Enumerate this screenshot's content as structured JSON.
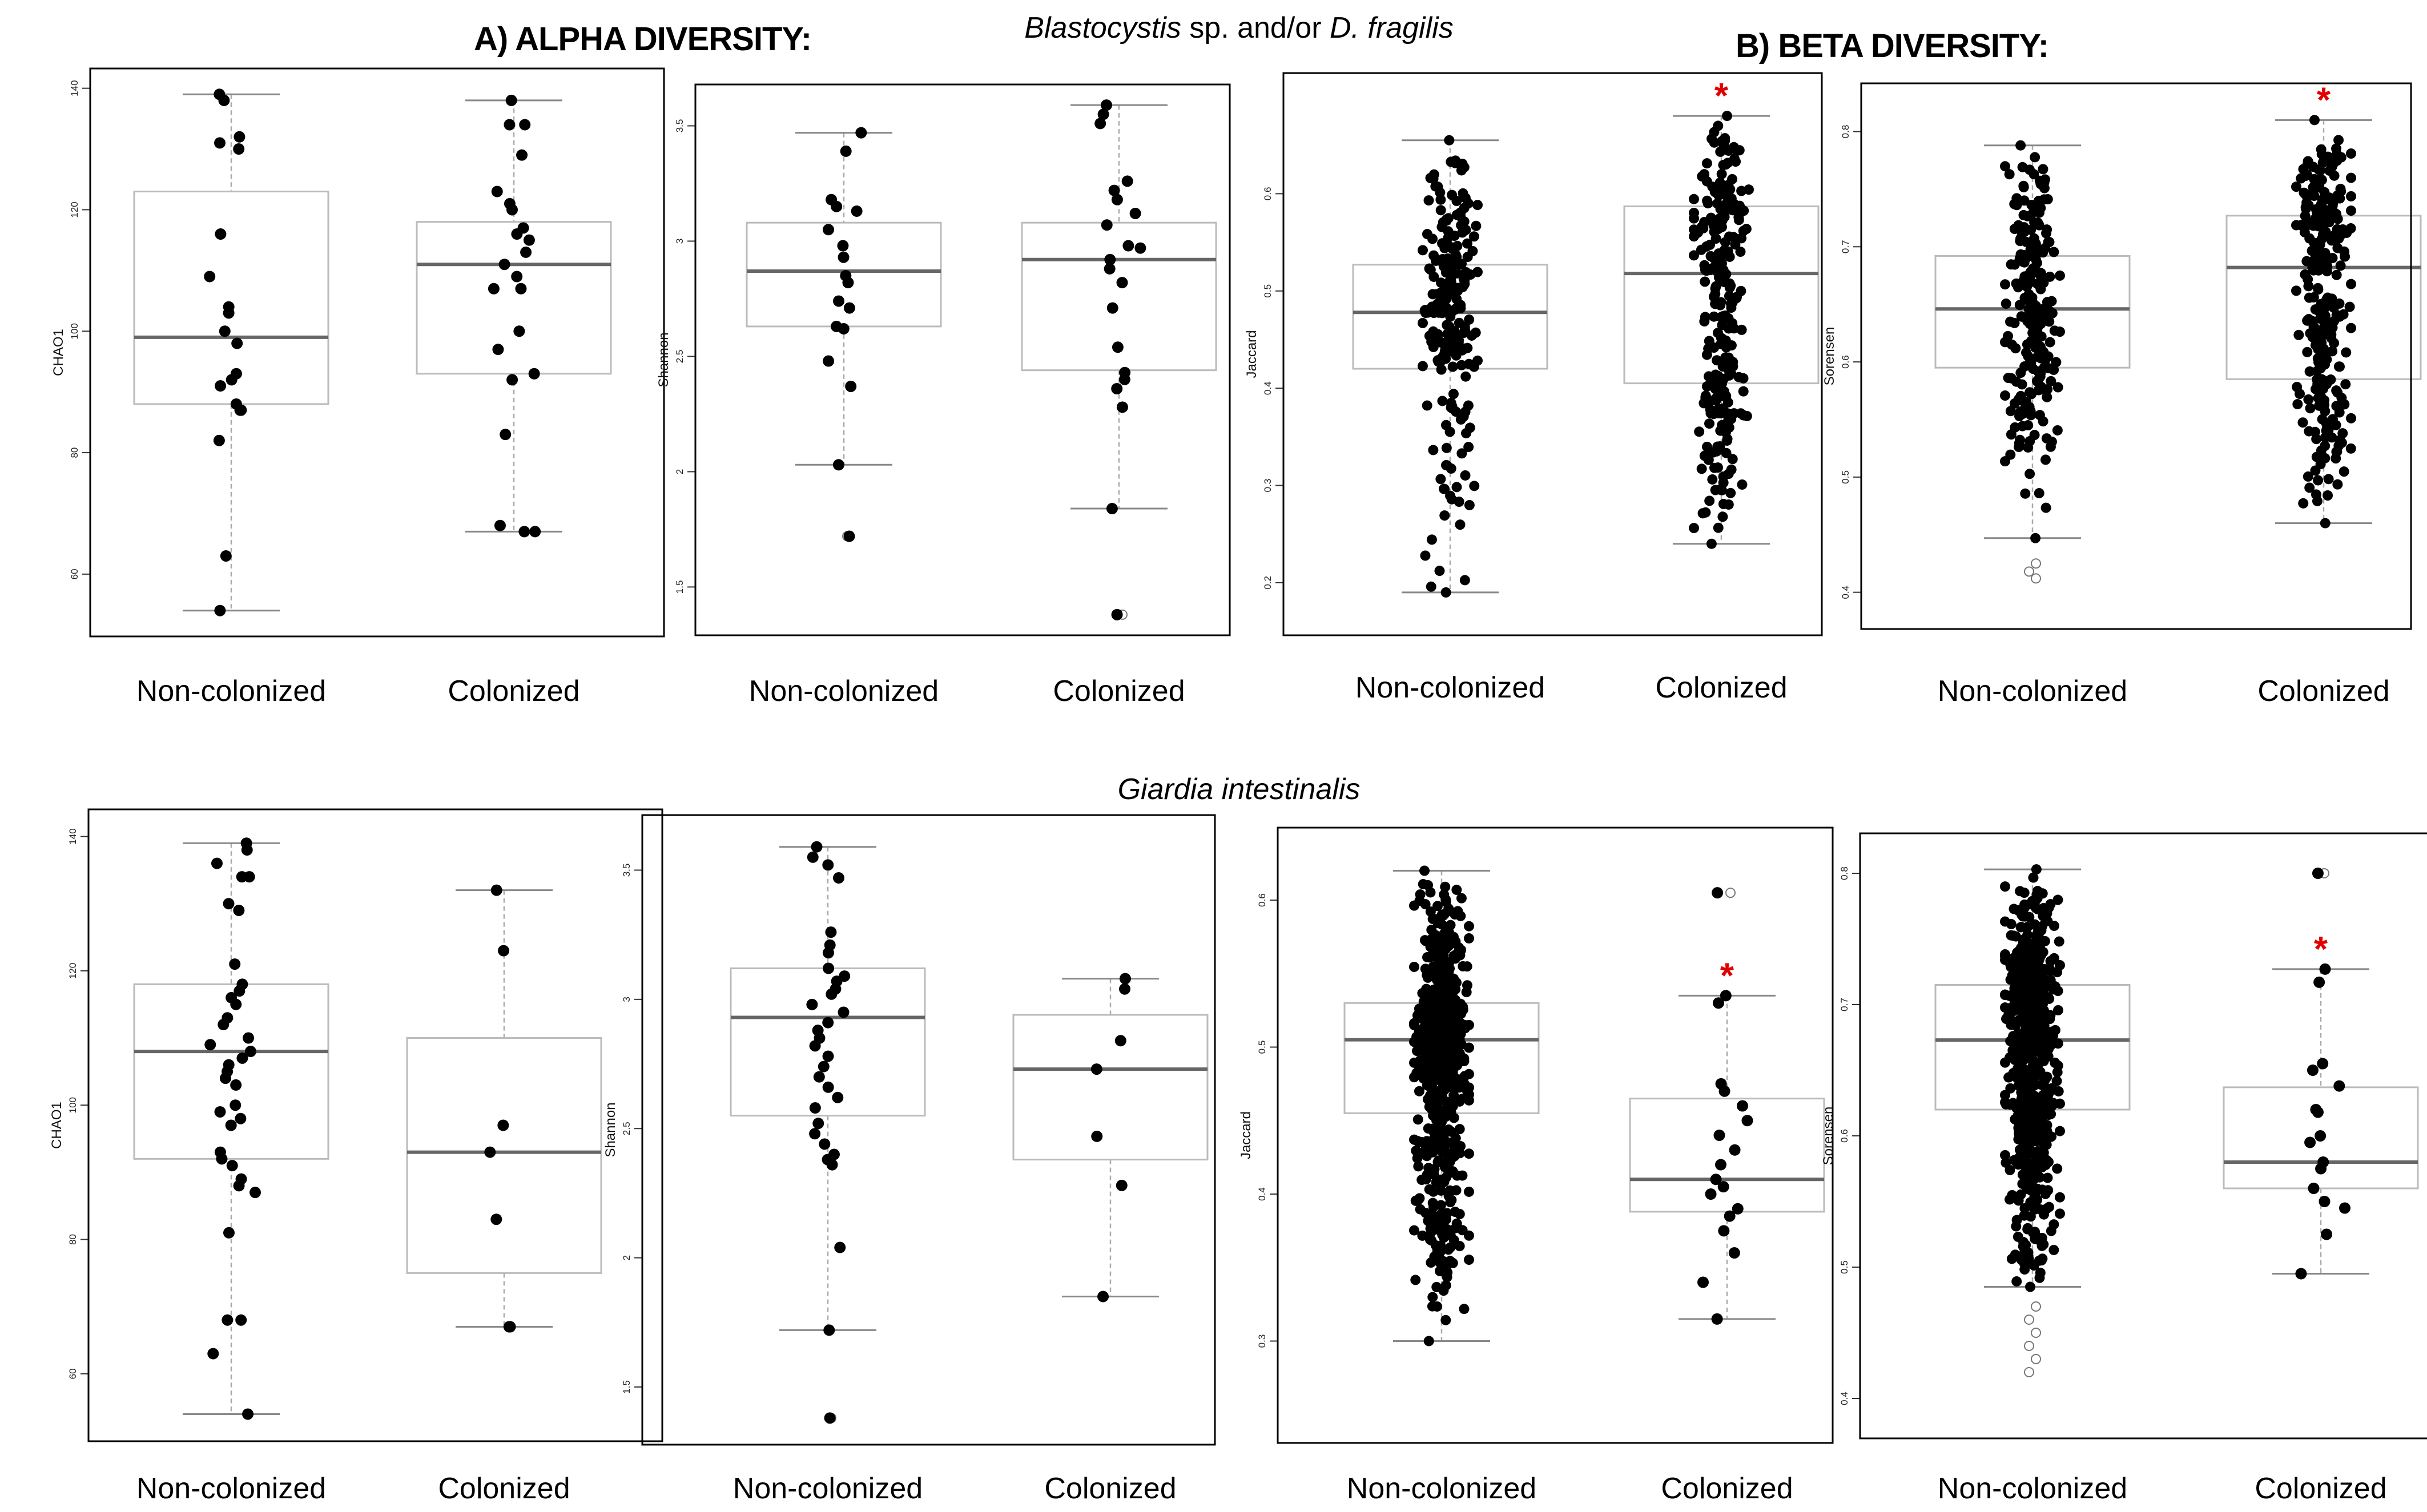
{
  "titles": {
    "alpha": "A) ALPHA DIVERSITY:",
    "beta": "B) BETA DIVERSITY:"
  },
  "subtitles": {
    "row1": [
      {
        "text": "Blastocystis",
        "italic": true
      },
      {
        "text": " sp. and/or ",
        "italic": false
      },
      {
        "text": "D. fragilis",
        "italic": true
      }
    ],
    "row2": [
      {
        "text": "Giardia intestinalis",
        "italic": true
      }
    ]
  },
  "colors": {
    "point": "#000000",
    "significance": "#e00000",
    "box_border": "#bbbbbb",
    "median": "#666666",
    "whisker": "#aaaaaa",
    "frame": "#000000"
  },
  "chart_data": [
    {
      "type": "box",
      "row": 1,
      "col": 1,
      "ylabel": "CHAO1",
      "ylim": [
        52,
        141
      ],
      "ticks": [
        60,
        80,
        100,
        120,
        140
      ],
      "categories": [
        "Non-colonized",
        "Colonized"
      ],
      "boxes": [
        {
          "q1": 88,
          "median": 99,
          "q3": 123,
          "lower": 54,
          "upper": 139,
          "outliers": [],
          "significant": false,
          "points": [
            139,
            138,
            132,
            131,
            130,
            116,
            109,
            104,
            103,
            100,
            98,
            93,
            92,
            91,
            88,
            87,
            87,
            82,
            63,
            54
          ]
        },
        {
          "q1": 93,
          "median": 111,
          "q3": 118,
          "lower": 67,
          "upper": 138,
          "outliers": [],
          "significant": false,
          "points": [
            138,
            134,
            134,
            129,
            123,
            121,
            120,
            117,
            116,
            115,
            113,
            111,
            109,
            107,
            107,
            100,
            97,
            93,
            92,
            83,
            68,
            67,
            67
          ]
        }
      ]
    },
    {
      "type": "box",
      "row": 1,
      "col": 2,
      "ylabel": "Shannon",
      "ylim": [
        1.35,
        3.62
      ],
      "ticks": [
        1.5,
        2.0,
        2.5,
        3.0,
        3.5
      ],
      "categories": [
        "Non-colonized",
        "Colonized"
      ],
      "boxes": [
        {
          "q1": 2.63,
          "median": 2.87,
          "q3": 3.08,
          "lower": 2.03,
          "upper": 3.47,
          "outliers": [
            1.72
          ],
          "significant": false,
          "points": [
            3.47,
            3.39,
            3.18,
            3.15,
            3.13,
            3.05,
            2.98,
            2.93,
            2.85,
            2.82,
            2.74,
            2.71,
            2.63,
            2.62,
            2.48,
            2.37,
            2.03,
            1.72
          ]
        },
        {
          "q1": 2.44,
          "median": 2.92,
          "q3": 3.08,
          "lower": 1.84,
          "upper": 3.59,
          "outliers": [
            1.38
          ],
          "significant": false,
          "points": [
            3.59,
            3.55,
            3.51,
            3.26,
            3.22,
            3.18,
            3.12,
            3.07,
            2.98,
            2.97,
            2.92,
            2.88,
            2.82,
            2.71,
            2.54,
            2.43,
            2.4,
            2.36,
            2.28,
            1.84,
            1.38
          ]
        }
      ]
    },
    {
      "type": "box",
      "row": 1,
      "col": 3,
      "ylabel": "Jaccard",
      "ylim": [
        0.16,
        0.71
      ],
      "ticks": [
        0.2,
        0.3,
        0.4,
        0.5,
        0.6
      ],
      "categories": [
        "Non-colonized",
        "Colonized"
      ],
      "boxes": [
        {
          "q1": 0.42,
          "median": 0.478,
          "q3": 0.527,
          "lower": 0.19,
          "upper": 0.655,
          "outliers": [],
          "significant": false,
          "n_points": 220,
          "seed": 11
        },
        {
          "q1": 0.405,
          "median": 0.518,
          "q3": 0.587,
          "lower": 0.24,
          "upper": 0.68,
          "outliers": [],
          "significant": true,
          "n_points": 260,
          "seed": 23
        }
      ]
    },
    {
      "type": "box",
      "row": 1,
      "col": 4,
      "ylabel": "Sorensen",
      "ylim": [
        0.38,
        0.83
      ],
      "ticks": [
        0.4,
        0.5,
        0.6,
        0.7,
        0.8
      ],
      "categories": [
        "Non-colonized",
        "Colonized"
      ],
      "boxes": [
        {
          "q1": 0.595,
          "median": 0.646,
          "q3": 0.692,
          "lower": 0.447,
          "upper": 0.788,
          "outliers": [
            0.425,
            0.418,
            0.412
          ],
          "significant": false,
          "n_points": 230,
          "seed": 37
        },
        {
          "q1": 0.585,
          "median": 0.682,
          "q3": 0.727,
          "lower": 0.46,
          "upper": 0.81,
          "outliers": [],
          "significant": true,
          "n_points": 270,
          "seed": 41
        }
      ]
    },
    {
      "type": "box",
      "row": 2,
      "col": 1,
      "ylabel": "CHAO1",
      "ylim": [
        52,
        142
      ],
      "ticks": [
        60,
        80,
        100,
        120,
        140
      ],
      "categories": [
        "Non-colonized",
        "Colonized"
      ],
      "boxes": [
        {
          "q1": 92,
          "median": 108,
          "q3": 118,
          "lower": 54,
          "upper": 139,
          "outliers": [],
          "significant": false,
          "points": [
            139,
            138,
            136,
            134,
            134,
            130,
            129,
            121,
            118,
            117,
            116,
            115,
            113,
            112,
            110,
            109,
            108,
            107,
            106,
            105,
            104,
            103,
            100,
            99,
            98,
            97,
            93,
            92,
            91,
            89,
            88,
            87,
            81,
            68,
            68,
            63,
            54
          ]
        },
        {
          "q1": 75,
          "median": 93,
          "q3": 110,
          "lower": 67,
          "upper": 132,
          "outliers": [],
          "significant": false,
          "points": [
            132,
            123,
            97,
            93,
            83,
            67,
            67
          ]
        }
      ]
    },
    {
      "type": "box",
      "row": 2,
      "col": 2,
      "ylabel": "Shannon",
      "ylim": [
        1.33,
        3.66
      ],
      "ticks": [
        1.5,
        2.0,
        2.5,
        3.0,
        3.5
      ],
      "categories": [
        "Non-colonized",
        "Colonized"
      ],
      "boxes": [
        {
          "q1": 2.55,
          "median": 2.93,
          "q3": 3.12,
          "lower": 1.72,
          "upper": 3.59,
          "outliers": [
            1.38
          ],
          "significant": false,
          "points": [
            3.59,
            3.55,
            3.52,
            3.47,
            3.26,
            3.21,
            3.18,
            3.12,
            3.09,
            3.07,
            3.04,
            3.02,
            2.98,
            2.95,
            2.91,
            2.88,
            2.85,
            2.82,
            2.78,
            2.74,
            2.7,
            2.66,
            2.62,
            2.58,
            2.52,
            2.48,
            2.44,
            2.4,
            2.38,
            2.36,
            2.04,
            1.72,
            1.38
          ]
        },
        {
          "q1": 2.38,
          "median": 2.73,
          "q3": 2.94,
          "lower": 1.85,
          "upper": 3.08,
          "outliers": [],
          "significant": false,
          "points": [
            3.08,
            3.04,
            2.84,
            2.73,
            2.47,
            2.28,
            1.85
          ]
        }
      ]
    },
    {
      "type": "box",
      "row": 2,
      "col": 3,
      "ylabel": "Jaccard",
      "ylim": [
        0.24,
        0.64
      ],
      "ticks": [
        0.3,
        0.4,
        0.5,
        0.6
      ],
      "categories": [
        "Non-colonized",
        "Colonized"
      ],
      "boxes": [
        {
          "q1": 0.455,
          "median": 0.505,
          "q3": 0.53,
          "lower": 0.3,
          "upper": 0.62,
          "outliers": [],
          "significant": false,
          "n_points": 650,
          "seed": 53
        },
        {
          "q1": 0.388,
          "median": 0.41,
          "q3": 0.465,
          "lower": 0.315,
          "upper": 0.535,
          "outliers": [
            0.605
          ],
          "significant": true,
          "points": [
            0.605,
            0.535,
            0.53,
            0.475,
            0.47,
            0.46,
            0.45,
            0.44,
            0.43,
            0.42,
            0.41,
            0.405,
            0.4,
            0.39,
            0.385,
            0.375,
            0.36,
            0.34,
            0.315
          ]
        }
      ]
    },
    {
      "type": "box",
      "row": 2,
      "col": 4,
      "ylabel": "Sorensen",
      "ylim": [
        0.38,
        0.82
      ],
      "ticks": [
        0.4,
        0.5,
        0.6,
        0.7,
        0.8
      ],
      "categories": [
        "Non-colonized",
        "Colonized"
      ],
      "boxes": [
        {
          "q1": 0.62,
          "median": 0.673,
          "q3": 0.715,
          "lower": 0.485,
          "upper": 0.803,
          "outliers": [
            0.47,
            0.46,
            0.45,
            0.44,
            0.43,
            0.42
          ],
          "significant": false,
          "n_points": 620,
          "seed": 67
        },
        {
          "q1": 0.56,
          "median": 0.58,
          "q3": 0.637,
          "lower": 0.495,
          "upper": 0.727,
          "outliers": [
            0.8
          ],
          "significant": true,
          "points": [
            0.8,
            0.727,
            0.717,
            0.655,
            0.65,
            0.638,
            0.62,
            0.618,
            0.6,
            0.595,
            0.58,
            0.575,
            0.56,
            0.55,
            0.545,
            0.525,
            0.495
          ]
        }
      ]
    }
  ]
}
